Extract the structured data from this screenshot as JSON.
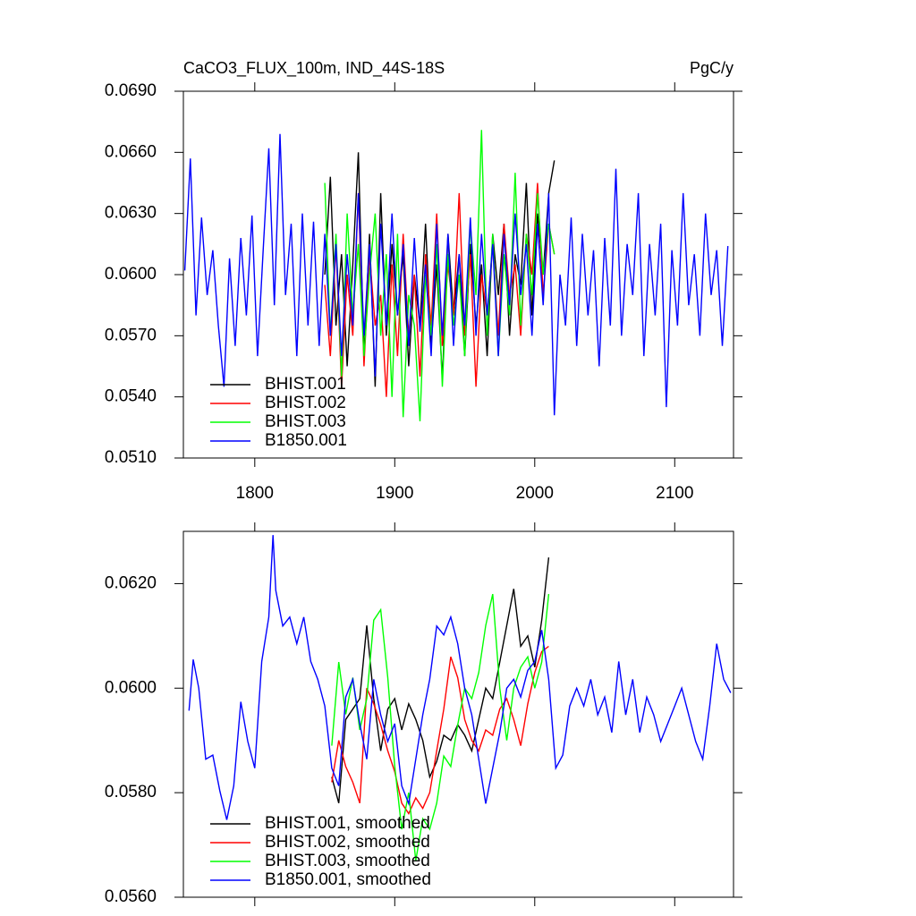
{
  "chart_data": [
    {
      "type": "line",
      "title": "CaCO3_FLUX_100m, IND_44S-18S",
      "units": "PgC/y",
      "xlim": [
        1749,
        2142
      ],
      "xticks": [
        1800,
        1900,
        2000,
        2100
      ],
      "show_xtick_labels": true,
      "ylim": [
        0.051,
        0.069
      ],
      "yticks": [
        {
          "value": 0.051,
          "label": "0.0510"
        },
        {
          "value": 0.054,
          "label": "0.0540"
        },
        {
          "value": 0.057,
          "label": "0.0570"
        },
        {
          "value": 0.06,
          "label": "0.0600"
        },
        {
          "value": 0.063,
          "label": "0.0630"
        },
        {
          "value": 0.066,
          "label": "0.0660"
        },
        {
          "value": 0.069,
          "label": "0.0690"
        }
      ],
      "legend": "lower left",
      "series": [
        {
          "name": "BHIST.001",
          "color": "#000000",
          "x": [
            1850,
            1854,
            1858,
            1862,
            1866,
            1870,
            1874,
            1878,
            1882,
            1886,
            1890,
            1894,
            1898,
            1902,
            1906,
            1910,
            1914,
            1918,
            1922,
            1926,
            1930,
            1934,
            1938,
            1942,
            1946,
            1950,
            1954,
            1958,
            1962,
            1966,
            1970,
            1974,
            1978,
            1982,
            1986,
            1990,
            1994,
            1998,
            2002,
            2006,
            2010,
            2014
          ],
          "values": [
            0.06,
            0.0648,
            0.0575,
            0.061,
            0.0555,
            0.0605,
            0.066,
            0.056,
            0.062,
            0.0545,
            0.064,
            0.057,
            0.0615,
            0.058,
            0.061,
            0.0555,
            0.06,
            0.0575,
            0.0625,
            0.0565,
            0.0605,
            0.0548,
            0.062,
            0.058,
            0.061,
            0.056,
            0.0615,
            0.0575,
            0.0605,
            0.056,
            0.062,
            0.059,
            0.0625,
            0.057,
            0.061,
            0.0595,
            0.0645,
            0.058,
            0.063,
            0.06,
            0.064,
            0.0656
          ]
        },
        {
          "name": "BHIST.002",
          "color": "#ff0000",
          "x": [
            1850,
            1854,
            1858,
            1862,
            1866,
            1870,
            1874,
            1878,
            1882,
            1886,
            1890,
            1894,
            1898,
            1902,
            1906,
            1910,
            1914,
            1918,
            1922,
            1926,
            1930,
            1934,
            1938,
            1942,
            1946,
            1950,
            1954,
            1958,
            1962,
            1966,
            1970,
            1974,
            1978,
            1982,
            1986,
            1990,
            1994,
            1998,
            2002,
            2006,
            2010,
            2014
          ],
          "values": [
            0.0595,
            0.056,
            0.0615,
            0.0545,
            0.06,
            0.057,
            0.064,
            0.0555,
            0.061,
            0.0575,
            0.059,
            0.054,
            0.0605,
            0.056,
            0.062,
            0.057,
            0.06,
            0.055,
            0.061,
            0.0575,
            0.063,
            0.0565,
            0.0605,
            0.058,
            0.064,
            0.057,
            0.061,
            0.0545,
            0.06,
            0.058,
            0.0615,
            0.057,
            0.0625,
            0.059,
            0.0605,
            0.057,
            0.062,
            0.06,
            0.0645,
            0.059,
            0.0625,
            0.061
          ]
        },
        {
          "name": "BHIST.003",
          "color": "#00ff00",
          "x": [
            1850,
            1854,
            1858,
            1862,
            1866,
            1870,
            1874,
            1878,
            1882,
            1886,
            1890,
            1894,
            1898,
            1902,
            1906,
            1910,
            1914,
            1918,
            1922,
            1926,
            1930,
            1934,
            1938,
            1942,
            1946,
            1950,
            1954,
            1958,
            1962,
            1966,
            1970,
            1974,
            1978,
            1982,
            1986,
            1990,
            1994,
            1998,
            2002,
            2006,
            2010,
            2014
          ],
          "values": [
            0.0645,
            0.057,
            0.062,
            0.055,
            0.063,
            0.058,
            0.0615,
            0.056,
            0.06,
            0.063,
            0.057,
            0.061,
            0.054,
            0.062,
            0.053,
            0.059,
            0.0575,
            0.0528,
            0.06,
            0.057,
            0.0615,
            0.0545,
            0.061,
            0.0575,
            0.06,
            0.056,
            0.0625,
            0.059,
            0.0671,
            0.057,
            0.062,
            0.056,
            0.061,
            0.058,
            0.065,
            0.0575,
            0.062,
            0.059,
            0.064,
            0.06,
            0.0625,
            0.061
          ]
        },
        {
          "name": "B1850.001",
          "color": "#0000ff",
          "x": [
            1750,
            1754,
            1758,
            1762,
            1766,
            1770,
            1774,
            1778,
            1782,
            1786,
            1790,
            1794,
            1798,
            1802,
            1806,
            1810,
            1814,
            1818,
            1822,
            1826,
            1830,
            1834,
            1838,
            1842,
            1846,
            1850,
            1854,
            1858,
            1862,
            1866,
            1870,
            1874,
            1878,
            1882,
            1886,
            1890,
            1894,
            1898,
            1902,
            1906,
            1910,
            1914,
            1918,
            1922,
            1926,
            1930,
            1934,
            1938,
            1942,
            1946,
            1950,
            1954,
            1958,
            1962,
            1966,
            1970,
            1974,
            1978,
            1982,
            1986,
            1990,
            1994,
            1998,
            2002,
            2006,
            2010,
            2014,
            2018,
            2022,
            2026,
            2030,
            2034,
            2038,
            2042,
            2046,
            2050,
            2054,
            2058,
            2062,
            2066,
            2070,
            2074,
            2078,
            2082,
            2086,
            2090,
            2094,
            2098,
            2102,
            2106,
            2110,
            2114,
            2118,
            2122,
            2126,
            2130,
            2134,
            2138
          ],
          "values": [
            0.0602,
            0.0657,
            0.058,
            0.0628,
            0.059,
            0.0612,
            0.0575,
            0.0545,
            0.0608,
            0.0565,
            0.0618,
            0.058,
            0.0629,
            0.056,
            0.0612,
            0.0662,
            0.0585,
            0.0669,
            0.059,
            0.0625,
            0.056,
            0.063,
            0.0575,
            0.0626,
            0.0565,
            0.062,
            0.057,
            0.0615,
            0.056,
            0.061,
            0.0575,
            0.064,
            0.057,
            0.0615,
            0.055,
            0.0625,
            0.0575,
            0.063,
            0.058,
            0.0615,
            0.0565,
            0.0618,
            0.0572,
            0.0605,
            0.056,
            0.0625,
            0.057,
            0.062,
            0.0565,
            0.061,
            0.0575,
            0.0628,
            0.057,
            0.062,
            0.058,
            0.0615,
            0.056,
            0.062,
            0.0585,
            0.063,
            0.059,
            0.0615,
            0.057,
            0.0625,
            0.0585,
            0.064,
            0.0531,
            0.06,
            0.0575,
            0.0628,
            0.0565,
            0.062,
            0.058,
            0.0612,
            0.0555,
            0.0618,
            0.0575,
            0.0652,
            0.057,
            0.0615,
            0.059,
            0.064,
            0.056,
            0.0615,
            0.058,
            0.0625,
            0.0535,
            0.0612,
            0.0575,
            0.064,
            0.0585,
            0.061,
            0.057,
            0.063,
            0.059,
            0.0612,
            0.0565,
            0.0614
          ]
        }
      ]
    },
    {
      "type": "line",
      "xlim": [
        1749,
        2142
      ],
      "xticks": [
        1800,
        1900,
        2000,
        2100
      ],
      "show_xtick_labels": false,
      "ylim": [
        0.056,
        0.063
      ],
      "yticks": [
        {
          "value": 0.056,
          "label": "0.0560"
        },
        {
          "value": 0.058,
          "label": "0.0580"
        },
        {
          "value": 0.06,
          "label": "0.0600"
        },
        {
          "value": 0.062,
          "label": "0.0620"
        }
      ],
      "legend": "lower left",
      "series": [
        {
          "name": "BHIST.001, smoothed",
          "color": "#000000",
          "x": [
            1855,
            1860,
            1865,
            1870,
            1875,
            1880,
            1885,
            1890,
            1895,
            1900,
            1905,
            1910,
            1915,
            1920,
            1925,
            1930,
            1935,
            1940,
            1945,
            1950,
            1955,
            1960,
            1965,
            1970,
            1975,
            1980,
            1985,
            1990,
            1995,
            2000,
            2005,
            2010
          ],
          "values": [
            0.0583,
            0.0578,
            0.0594,
            0.0596,
            0.0598,
            0.0612,
            0.0598,
            0.0588,
            0.0596,
            0.0598,
            0.0592,
            0.0597,
            0.0594,
            0.059,
            0.0583,
            0.0586,
            0.0591,
            0.059,
            0.0593,
            0.0591,
            0.0588,
            0.0594,
            0.06,
            0.0598,
            0.0605,
            0.0612,
            0.0619,
            0.0608,
            0.061,
            0.0604,
            0.0613,
            0.0625
          ]
        },
        {
          "name": "BHIST.002, smoothed",
          "color": "#ff0000",
          "x": [
            1855,
            1860,
            1865,
            1870,
            1875,
            1880,
            1885,
            1890,
            1895,
            1900,
            1905,
            1910,
            1915,
            1920,
            1925,
            1930,
            1935,
            1940,
            1945,
            1950,
            1955,
            1960,
            1965,
            1970,
            1975,
            1980,
            1985,
            1990,
            1995,
            2000,
            2005,
            2010
          ],
          "values": [
            0.0582,
            0.059,
            0.0585,
            0.0582,
            0.0578,
            0.06,
            0.0597,
            0.0593,
            0.0588,
            0.0584,
            0.0578,
            0.0576,
            0.0579,
            0.0577,
            0.058,
            0.0588,
            0.0596,
            0.0606,
            0.0602,
            0.0594,
            0.059,
            0.0588,
            0.0592,
            0.0591,
            0.0596,
            0.0598,
            0.0594,
            0.0589,
            0.0597,
            0.0603,
            0.0607,
            0.0608
          ]
        },
        {
          "name": "BHIST.003, smoothed",
          "color": "#00ff00",
          "x": [
            1855,
            1860,
            1865,
            1870,
            1875,
            1880,
            1885,
            1890,
            1895,
            1900,
            1905,
            1910,
            1915,
            1920,
            1925,
            1930,
            1935,
            1940,
            1945,
            1950,
            1955,
            1960,
            1965,
            1970,
            1975,
            1980,
            1985,
            1990,
            1995,
            2000,
            2005,
            2010
          ],
          "values": [
            0.0589,
            0.0605,
            0.0595,
            0.0602,
            0.0592,
            0.0598,
            0.0613,
            0.0615,
            0.0602,
            0.0585,
            0.0573,
            0.058,
            0.0567,
            0.0575,
            0.0573,
            0.0578,
            0.0587,
            0.0585,
            0.0593,
            0.06,
            0.0598,
            0.0603,
            0.0612,
            0.0618,
            0.06,
            0.059,
            0.06,
            0.0604,
            0.0606,
            0.06,
            0.0605,
            0.0618
          ]
        },
        {
          "name": "B1850.001, smoothed",
          "color": "#0000ff",
          "x": [
            1753,
            1756,
            1760,
            1765,
            1770,
            1775,
            1780,
            1785,
            1790,
            1795,
            1800,
            1805,
            1810,
            1813,
            1815,
            1820,
            1825,
            1830,
            1835,
            1840,
            1845,
            1850,
            1855,
            1860,
            1865,
            1870,
            1875,
            1880,
            1885,
            1890,
            1895,
            1900,
            1905,
            1910,
            1915,
            1920,
            1925,
            1930,
            1935,
            1940,
            1945,
            1950,
            1955,
            1960,
            1965,
            1970,
            1975,
            1980,
            1985,
            1990,
            1995,
            2000,
            2005,
            2010,
            2015,
            2020,
            2025,
            2030,
            2035,
            2040,
            2045,
            2050,
            2055,
            2060,
            2065,
            2070,
            2075,
            2080,
            2085,
            2090,
            2095,
            2100,
            2105,
            2110,
            2115,
            2120,
            2125,
            2130,
            2135,
            2140
          ],
          "values": [
            0.05957,
            0.06055,
            0.06,
            0.05864,
            0.05872,
            0.05804,
            0.05748,
            0.05813,
            0.05974,
            0.05898,
            0.05847,
            0.06051,
            0.06136,
            0.06293,
            0.06187,
            0.06119,
            0.06136,
            0.06085,
            0.06136,
            0.06051,
            0.06017,
            0.05966,
            0.05847,
            0.05813,
            0.05983,
            0.06017,
            0.05932,
            0.05864,
            0.06017,
            0.05949,
            0.05898,
            0.05932,
            0.05813,
            0.05779,
            0.05864,
            0.05949,
            0.06017,
            0.06119,
            0.06102,
            0.06136,
            0.06085,
            0.06,
            0.05949,
            0.05864,
            0.05779,
            0.05847,
            0.05915,
            0.06,
            0.06017,
            0.05983,
            0.06034,
            0.06051,
            0.06111,
            0.06017,
            0.05847,
            0.05872,
            0.05966,
            0.06,
            0.05966,
            0.06017,
            0.05949,
            0.05983,
            0.05915,
            0.06051,
            0.05949,
            0.06017,
            0.05915,
            0.05983,
            0.05949,
            0.05898,
            0.05932,
            0.05966,
            0.06,
            0.05949,
            0.05898,
            0.05864,
            0.05966,
            0.06085,
            0.06017,
            0.05991
          ]
        }
      ]
    }
  ]
}
